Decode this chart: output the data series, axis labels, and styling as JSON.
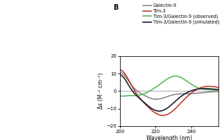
{
  "title": "B",
  "xlabel": "Wavelength (nm)",
  "ylabel": "Δε (M⁻¹ cm⁻¹)",
  "xlim": [
    200,
    255
  ],
  "ylim": [
    -20,
    20
  ],
  "xticks": [
    200,
    220,
    240
  ],
  "yticks": [
    -20,
    -10,
    0,
    10,
    20
  ],
  "legend_entries": [
    {
      "label": "Galectin-9",
      "color": "#888888",
      "lw": 1.2
    },
    {
      "label": "Tim-3",
      "color": "#c0392b",
      "lw": 1.2
    },
    {
      "label": "Tim-3/Galectin-9 (observed)",
      "color": "#5cb85c",
      "lw": 1.2
    },
    {
      "label": "Tim-3/Galectin-9 (simulated)",
      "color": "#1a1a2e",
      "lw": 1.2
    }
  ],
  "background_color": "#ffffff"
}
